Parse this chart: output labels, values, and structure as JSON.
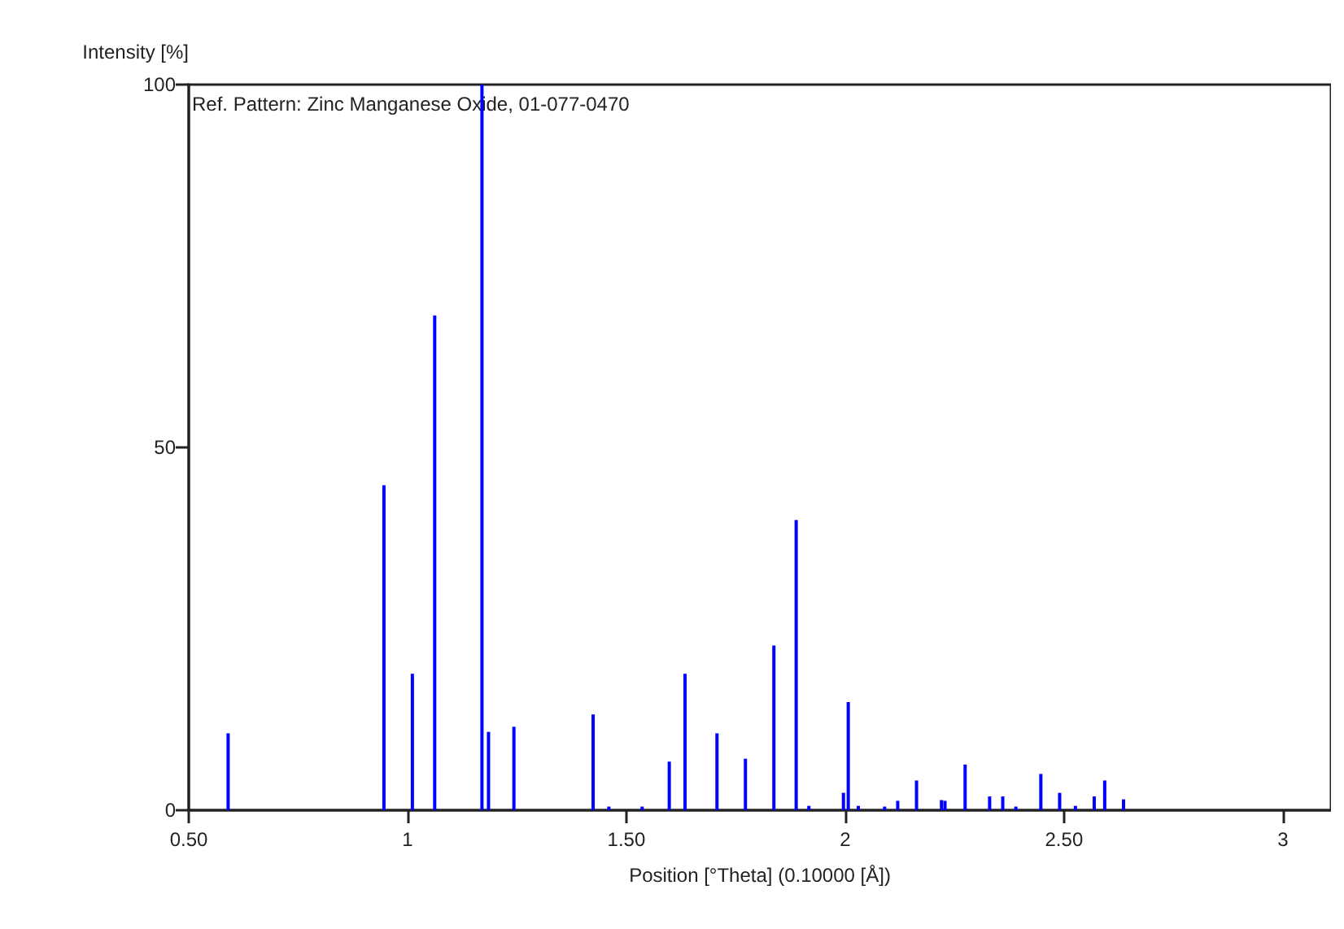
{
  "chart_data": {
    "type": "bar",
    "xlabel": "Position [°Theta] (0.10000 [Å])",
    "ylabel": "Intensity [%]",
    "annotations": [
      "Ref. Pattern: Zinc Manganese Oxide, 01-077-0470"
    ],
    "x": [
      0.59,
      0.946,
      1.011,
      1.062,
      1.17,
      1.185,
      1.243,
      1.424,
      1.46,
      1.536,
      1.598,
      1.634,
      1.707,
      1.772,
      1.837,
      1.888,
      1.917,
      1.996,
      2.007,
      2.03,
      2.09,
      2.12,
      2.163,
      2.22,
      2.228,
      2.274,
      2.33,
      2.36,
      2.39,
      2.447,
      2.49,
      2.526,
      2.569,
      2.593,
      2.636
    ],
    "values": [
      10.6,
      44.8,
      18.8,
      68.2,
      100,
      10.8,
      11.5,
      13.2,
      0.5,
      0.5,
      6.7,
      18.8,
      10.6,
      7.1,
      22.7,
      40,
      0.6,
      2.4,
      14.9,
      0.6,
      0.5,
      1.3,
      4.1,
      1.4,
      1.3,
      6.3,
      1.9,
      1.9,
      0.5,
      5,
      2.4,
      0.6,
      1.9,
      4.1,
      1.5
    ],
    "color": "#0000ff",
    "xlim": [
      0.5,
      3.11
    ],
    "xticks": [
      {
        "value": 0.5,
        "label": "0.50"
      },
      1,
      {
        "value": 1.5,
        "label": "1.50"
      },
      2,
      {
        "value": 2.5,
        "label": "2.50"
      },
      3
    ],
    "ylim": [
      0,
      100
    ],
    "yticks": [
      0,
      50,
      100
    ],
    "grid": false
  }
}
